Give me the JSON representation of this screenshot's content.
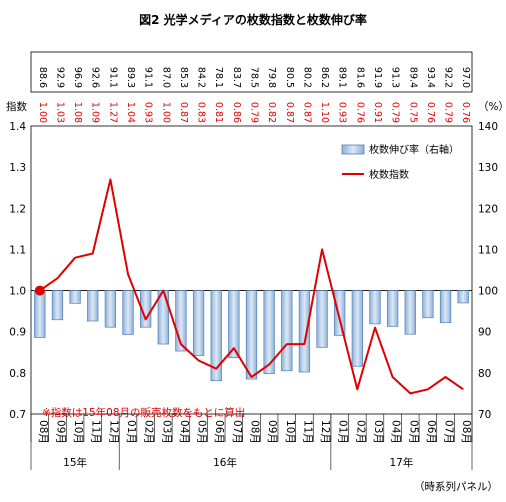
{
  "chart_data": {
    "type": "bar",
    "title": "図2  光学メディアの枚数指数と枚数伸び率",
    "categories": [
      "08月",
      "09月",
      "10月",
      "11月",
      "12月",
      "01月",
      "02月",
      "03月",
      "04月",
      "05月",
      "06月",
      "07月",
      "08月",
      "09月",
      "10月",
      "11月",
      "12月",
      "01月",
      "02月",
      "03月",
      "04月",
      "05月",
      "06月",
      "07月",
      "08月"
    ],
    "year_groups": [
      {
        "label": "15年",
        "start": 0,
        "end": 4
      },
      {
        "label": "16年",
        "start": 5,
        "end": 16
      },
      {
        "label": "17年",
        "start": 17,
        "end": 24
      }
    ],
    "series": [
      {
        "name": "枚数伸び率（右軸）",
        "type": "bar",
        "axis": "right",
        "color": "#b9cde5",
        "labels": [
          "88.6",
          "92.9",
          "96.9",
          "92.6",
          "91.1",
          "89.3",
          "91.1",
          "87.0",
          "85.3",
          "84.2",
          "78.1",
          "83.7",
          "78.5",
          "79.8",
          "80.5",
          "80.2",
          "86.2",
          "89.1",
          "81.6",
          "91.9",
          "91.3",
          "89.4",
          "93.4",
          "92.2",
          "97.0"
        ],
        "values": [
          88.6,
          92.9,
          96.9,
          92.6,
          91.1,
          89.3,
          91.1,
          87.0,
          85.3,
          84.2,
          78.1,
          83.7,
          78.5,
          79.8,
          80.5,
          80.2,
          86.2,
          89.1,
          81.6,
          91.9,
          91.3,
          89.4,
          93.4,
          92.2,
          97.0
        ]
      },
      {
        "name": "枚数指数",
        "type": "line",
        "axis": "left",
        "color": "#e00000",
        "labels": [
          "1.00",
          "1.03",
          "1.08",
          "1.09",
          "1.27",
          "1.04",
          "0.93",
          "1.00",
          "0.87",
          "0.83",
          "0.81",
          "0.86",
          "0.79",
          "0.82",
          "0.87",
          "0.87",
          "1.10",
          "0.93",
          "0.76",
          "0.91",
          "0.79",
          "0.75",
          "0.76",
          "0.79",
          "0.76"
        ],
        "values": [
          1.0,
          1.03,
          1.08,
          1.09,
          1.27,
          1.04,
          0.93,
          1.0,
          0.87,
          0.83,
          0.81,
          0.86,
          0.79,
          0.82,
          0.87,
          0.87,
          1.1,
          0.93,
          0.76,
          0.91,
          0.79,
          0.75,
          0.76,
          0.79,
          0.76
        ]
      }
    ],
    "left_axis": {
      "label": "指数",
      "min": 0.7,
      "max": 1.4,
      "ticks": [
        "0.7",
        "0.8",
        "0.9",
        "1.0",
        "1.1",
        "1.2",
        "1.3",
        "1.4"
      ]
    },
    "right_axis": {
      "label": "（%）",
      "min": 70,
      "max": 140,
      "ticks": [
        "70",
        "80",
        "90",
        "100",
        "110",
        "120",
        "130",
        "140"
      ]
    },
    "grid": false,
    "legend_position": "top-right",
    "note": "※指数は15年08月の販売枚数をもとに算出",
    "source_label": "（時系列パネル）",
    "colors": {
      "bar_fill": "#b9cde5",
      "bar_stroke": "#4f81bd",
      "line": "#e00000",
      "text_black": "#000000"
    }
  }
}
